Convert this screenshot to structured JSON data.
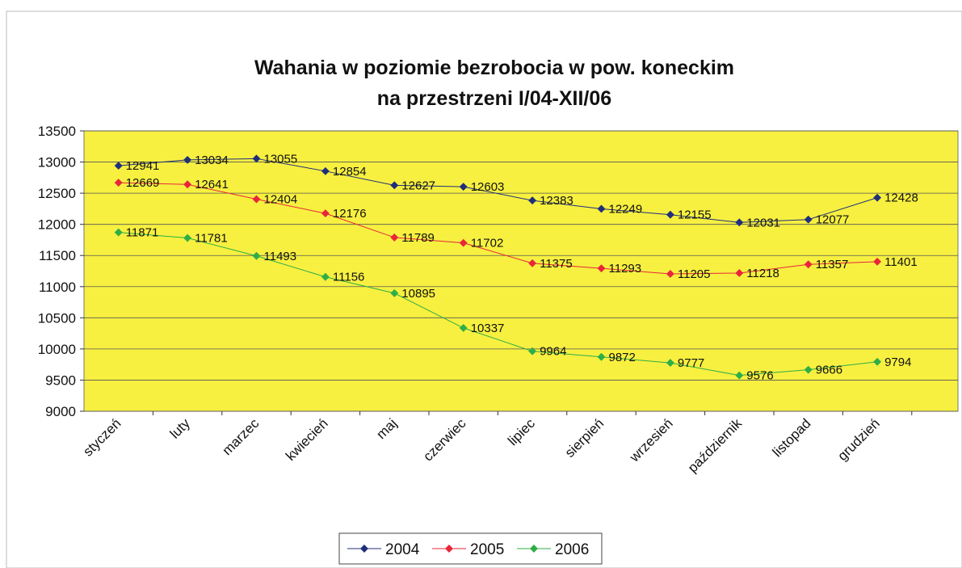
{
  "chart_data": {
    "type": "line",
    "title": "Wahania w poziomie bezrobocia w pow. koneckim",
    "subtitle": "na przestrzeni I/04-XII/06",
    "categories": [
      "styczeń",
      "luty",
      "marzec",
      "kwiecień",
      "maj",
      "czerwiec",
      "lipiec",
      "sierpień",
      "wrzesień",
      "październik",
      "listopad",
      "grudzień"
    ],
    "series": [
      {
        "name": "2004",
        "color": "#1f2f7a",
        "values": [
          12941,
          13034,
          13055,
          12854,
          12627,
          12603,
          12383,
          12249,
          12155,
          12031,
          12077,
          12428
        ]
      },
      {
        "name": "2005",
        "color": "#e8263a",
        "values": [
          12669,
          12641,
          12404,
          12176,
          11789,
          11702,
          11375,
          11293,
          11205,
          11218,
          11357,
          11401
        ]
      },
      {
        "name": "2006",
        "color": "#2fae46",
        "values": [
          11871,
          11781,
          11493,
          11156,
          10895,
          10337,
          9964,
          9872,
          9777,
          9576,
          9666,
          9794
        ]
      }
    ],
    "ylim": [
      9000,
      13500
    ],
    "yticks": [
      9000,
      9500,
      10000,
      10500,
      11000,
      11500,
      12000,
      12500,
      13000,
      13500
    ],
    "grid": true,
    "legend": "bottom",
    "plot_background": "#f7f040"
  }
}
